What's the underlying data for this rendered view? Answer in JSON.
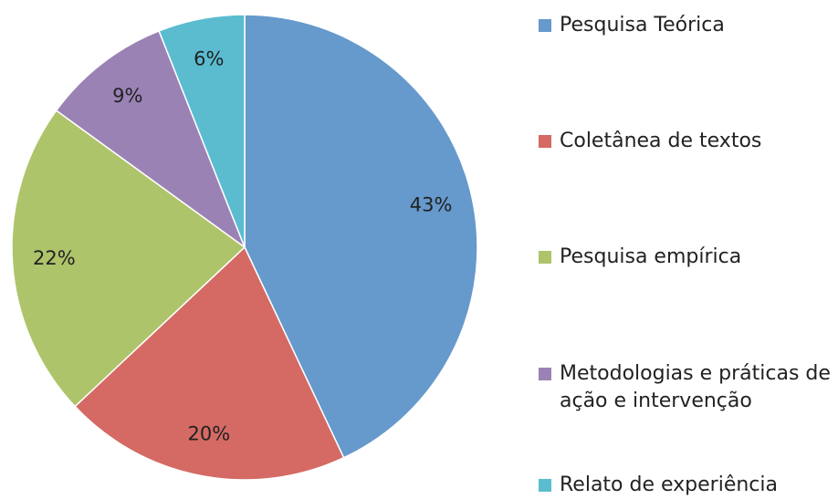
{
  "chart_data": {
    "type": "pie",
    "categories": [
      "Pesquisa Teórica",
      "Coletânea de textos",
      "Pesquisa empírica",
      "Metodologias e práticas de ação e intervenção",
      "Relato de experiência"
    ],
    "values": [
      43,
      20,
      22,
      9,
      6
    ],
    "value_labels": [
      "43%",
      "20%",
      "22%",
      "9%",
      "6%"
    ],
    "colors": [
      "#6699cc",
      "#d46a63",
      "#aec46a",
      "#9b82b5",
      "#5bbcd0"
    ]
  }
}
